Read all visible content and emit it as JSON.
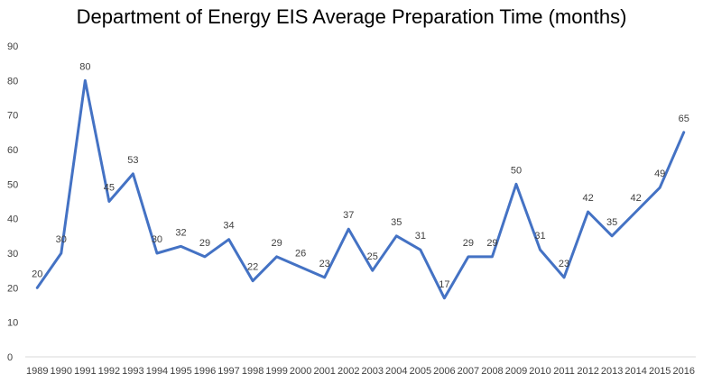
{
  "chart_data": {
    "type": "line",
    "title": "Department of Energy EIS Average Preparation Time (months)",
    "xlabel": "",
    "ylabel": "",
    "categories": [
      "1989",
      "1990",
      "1991",
      "1992",
      "1993",
      "1994",
      "1995",
      "1996",
      "1997",
      "1998",
      "1999",
      "2000",
      "2001",
      "2002",
      "2003",
      "2004",
      "2005",
      "2006",
      "2007",
      "2008",
      "2009",
      "2010",
      "2011",
      "2012",
      "2013",
      "2014",
      "2015",
      "2016"
    ],
    "series": [
      {
        "values": [
          20,
          30,
          80,
          45,
          53,
          30,
          32,
          29,
          34,
          22,
          29,
          26,
          23,
          37,
          25,
          35,
          31,
          17,
          29,
          29,
          50,
          31,
          23,
          42,
          35,
          42,
          49,
          65
        ],
        "data_labels": [
          "20",
          "30",
          "80",
          "45",
          "53",
          "30",
          "32",
          "29",
          "34",
          "22",
          "29",
          "",
          "23",
          "37",
          "25",
          "35",
          "31",
          "17",
          "29",
          "29",
          "50",
          "31",
          "23",
          "42",
          "35",
          "42",
          "49",
          "65"
        ],
        "color": "#4472C4"
      }
    ],
    "data_label_overrides": {
      "11": "26"
    },
    "ylim": [
      0,
      90
    ],
    "yticks": [
      0,
      10,
      20,
      30,
      40,
      50,
      60,
      70,
      80,
      90
    ],
    "grid": false,
    "legend": "none"
  }
}
